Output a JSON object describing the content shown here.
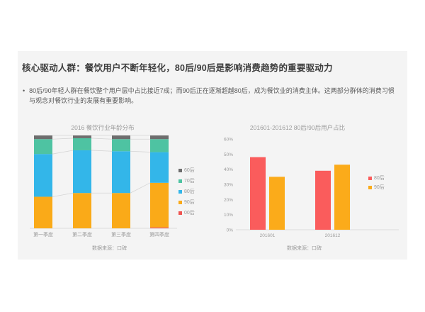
{
  "slide": {
    "title": "核心驱动人群：餐饮用户不断年轻化，80后/90后是影响消费趋势的重要驱动力",
    "bullet_marker": "•",
    "bullet": "80后/90年轻人群在餐饮整个用户层中占比接近7成；而90后正在逐渐超越80后，成为餐饮业的消费主体。这两部分群体的消费习惯与观念对餐饮行业的发展有重要影响。"
  },
  "colors": {
    "panel_bg": "#f4f4f4",
    "title_text": "#3d3d3d",
    "body_text": "#595959",
    "muted_text": "#9b9b9b",
    "axis_line": "#dcdcdc",
    "gray_60s": "#6d6d6d",
    "green_70s": "#4ec3a2",
    "blue_80s": "#33b6e9",
    "orange_90s": "#faaa18",
    "red_00s": "#ef5350",
    "red_80s_right": "#fa5c5c",
    "orange_90s_right": "#fbab1a"
  },
  "chart_data": [
    {
      "type": "bar",
      "variant": "stacked-100",
      "title": "2016 餐饮行业年龄分布",
      "categories": [
        "第一季度",
        "第二季度",
        "第三季度",
        "第四季度"
      ],
      "stack_order_bottom_to_top": [
        "00后",
        "90后",
        "80后",
        "70后",
        "60后"
      ],
      "series": [
        {
          "name": "00后",
          "color": "#ef5350",
          "values": [
            0,
            0,
            0,
            1
          ]
        },
        {
          "name": "90后",
          "color": "#faaa18",
          "values": [
            34,
            38,
            38,
            48
          ]
        },
        {
          "name": "80后",
          "color": "#33b6e9",
          "values": [
            46,
            46,
            45,
            33
          ]
        },
        {
          "name": "70后",
          "color": "#4ec3a2",
          "values": [
            16,
            13,
            13,
            14
          ]
        },
        {
          "name": "60后",
          "color": "#6d6d6d",
          "values": [
            4,
            3,
            4,
            4
          ]
        }
      ],
      "ylim": [
        0,
        100
      ],
      "grid": false,
      "legend_position": "right",
      "legend_order_top_to_bottom": [
        "60后",
        "70后",
        "80后",
        "90后",
        "00后"
      ],
      "source": "数据来源：口碑"
    },
    {
      "type": "bar",
      "variant": "grouped",
      "title": "201601-201612  80后/90后用户占比",
      "categories": [
        "201601",
        "201612"
      ],
      "series": [
        {
          "name": "80后",
          "color": "#fa5c5c",
          "values": [
            48,
            39
          ]
        },
        {
          "name": "90后",
          "color": "#fbab1a",
          "values": [
            35,
            43
          ]
        }
      ],
      "yticks": [
        "0%",
        "10%",
        "20%",
        "30%",
        "40%",
        "50%",
        "60%"
      ],
      "ylim": [
        0,
        60
      ],
      "grid": false,
      "legend_position": "right",
      "source": "数据来源：口碑"
    }
  ]
}
